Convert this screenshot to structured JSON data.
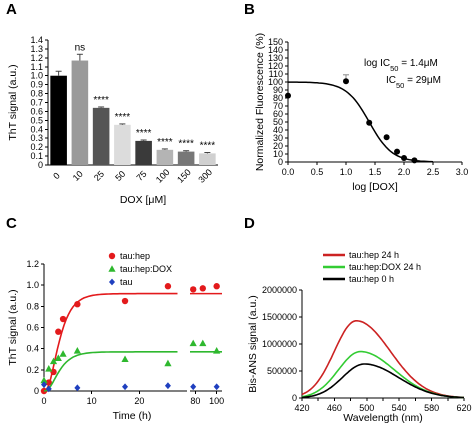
{
  "chart_data": [
    {
      "panel": "A",
      "type": "bar",
      "ylabel": "ThT signal (a.u.)",
      "xlabel": "DOX [μM]",
      "ylim": [
        0,
        1.4
      ],
      "yticks": [
        "0",
        "0.1",
        "0.2",
        "0.3",
        "0.4",
        "0.5",
        "0.6",
        "0.7",
        "0.8",
        "0.9",
        "1.0",
        "1.1",
        "1.2",
        "1.3",
        "1.4"
      ],
      "categories": [
        "0",
        "10",
        "25",
        "50",
        "75",
        "100",
        "150",
        "300"
      ],
      "values": [
        1.0,
        1.17,
        0.64,
        0.45,
        0.27,
        0.17,
        0.15,
        0.13
      ],
      "errors": [
        0.05,
        0.07,
        0.01,
        0.01,
        0.01,
        0.01,
        0.01,
        0.01
      ],
      "annotations": [
        "",
        "ns",
        "****",
        "****",
        "****",
        "****",
        "****",
        "****"
      ],
      "colors": [
        "#000000",
        "#9a9a9a",
        "#555555",
        "#dcdcdc",
        "#3a3a3a",
        "#b4b4b4",
        "#777777",
        "#d0d0d0"
      ]
    },
    {
      "panel": "B",
      "type": "scatter",
      "ylabel": "Normalized Fluorescence (%)",
      "xlabel": "log [DOX]",
      "xlim": [
        0,
        3.0
      ],
      "xticks": [
        "0.0",
        "0.5",
        "1.0",
        "1.5",
        "2.0",
        "2.5",
        "3.0"
      ],
      "ylim": [
        0,
        150
      ],
      "yticks": [
        "0",
        "10",
        "20",
        "30",
        "40",
        "50",
        "60",
        "70",
        "80",
        "90",
        "100",
        "110",
        "120",
        "130",
        "140",
        "150"
      ],
      "points": [
        {
          "x": 0.0,
          "y": 83
        },
        {
          "x": 1.0,
          "y": 101
        },
        {
          "x": 1.4,
          "y": 49
        },
        {
          "x": 1.7,
          "y": 31
        },
        {
          "x": 1.88,
          "y": 13
        },
        {
          "x": 2.0,
          "y": 5
        },
        {
          "x": 2.18,
          "y": 2
        }
      ],
      "errors": [
        0,
        8,
        0,
        0,
        0,
        0,
        0
      ],
      "fit": {
        "top": 100,
        "bottom": 0,
        "log_ic50": 1.4,
        "hill": -2.2,
        "x_range": [
          0,
          2.5
        ]
      },
      "annotation_1": "log IC",
      "annotation_1_sub": "50",
      "annotation_1_val": " = 1.4μM",
      "annotation_2": "IC",
      "annotation_2_sub": "50",
      "annotation_2_val": " = 29μM"
    },
    {
      "panel": "C",
      "type": "scatter",
      "ylabel": "ThT signal (a.u.)",
      "xlabel": "Time (h)",
      "ylim": [
        0,
        1.2
      ],
      "yticks": [
        "0",
        "0.2",
        "0.4",
        "0.6",
        "0.8",
        "1.0",
        "1.2"
      ],
      "xticks": [
        "0",
        "10",
        "20",
        "80",
        "100"
      ],
      "series": [
        {
          "name": "tau:hep",
          "color": "#e31a1c",
          "marker": "circle",
          "x": [
            0,
            1,
            2,
            3,
            4,
            7,
            17,
            26,
            78,
            87,
            100
          ],
          "y": [
            0.0,
            0.08,
            0.18,
            0.56,
            0.68,
            0.82,
            0.85,
            0.99,
            0.96,
            0.97,
            0.99
          ],
          "plateau": 0.92,
          "rate": 0.5
        },
        {
          "name": "tau:hep:DOX",
          "color": "#2eb82e",
          "marker": "triangle",
          "x": [
            0,
            1,
            2,
            3,
            4,
            7,
            17,
            26,
            78,
            87,
            100
          ],
          "y": [
            0.1,
            0.21,
            0.28,
            0.31,
            0.35,
            0.38,
            0.3,
            0.26,
            0.45,
            0.45,
            0.38
          ],
          "plateau": 0.37,
          "rate": 0.5
        },
        {
          "name": "tau",
          "color": "#1f3fbf",
          "marker": "diamond",
          "x": [
            0,
            1,
            7,
            17,
            26,
            78,
            100
          ],
          "y": [
            0.06,
            0.02,
            0.03,
            0.04,
            0.05,
            0.04,
            0.04
          ]
        }
      ]
    },
    {
      "panel": "D",
      "type": "line",
      "ylabel": "Bis-ANS signal (a.u.)",
      "xlabel": "Wavelength (nm)",
      "xlim": [
        420,
        620
      ],
      "xticks": [
        "420",
        "440",
        "460",
        "480",
        "500",
        "520",
        "540",
        "560",
        "580",
        "600",
        "620"
      ],
      "ylim": [
        0,
        2000000
      ],
      "yticks": [
        "0",
        "500000",
        "1000000",
        "1500000",
        "2000000"
      ],
      "series": [
        {
          "name": "tau:hep 24 h",
          "color": "#cc2222",
          "peak_x": 487,
          "peak_y": 1430000
        },
        {
          "name": "tau:hep:DOX 24 h",
          "color": "#33cc33",
          "peak_x": 492,
          "peak_y": 860000
        },
        {
          "name": "tau:hep 0 h",
          "color": "#000000",
          "peak_x": 497,
          "peak_y": 630000
        }
      ]
    }
  ]
}
